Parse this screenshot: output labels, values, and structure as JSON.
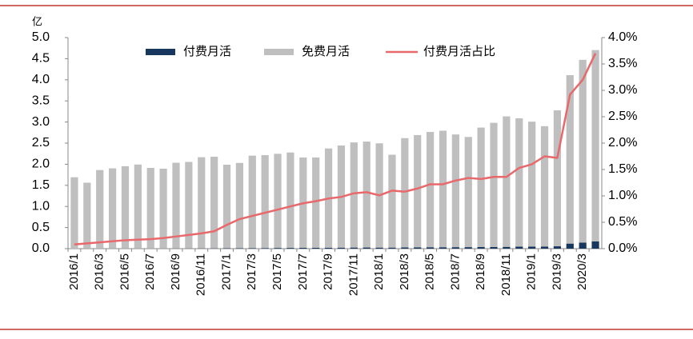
{
  "chart_data": {
    "type": "bar-line",
    "y_unit": "亿",
    "categories": [
      "2016/1",
      null,
      "2016/3",
      null,
      "2016/5",
      null,
      "2016/7",
      null,
      "2016/9",
      null,
      "2016/11",
      null,
      "2017/1",
      null,
      "2017/3",
      null,
      "2017/5",
      null,
      "2017/7",
      null,
      "2017/9",
      null,
      "2017/11",
      null,
      "2018/1",
      null,
      "2018/3",
      null,
      "2018/5",
      null,
      "2018/7",
      null,
      "2018/9",
      null,
      "2018/11",
      null,
      "2019/1",
      null,
      "2019/3",
      null,
      "2020/3",
      null
    ],
    "series": [
      {
        "name": "付费月活",
        "color": "#17375e",
        "values": [
          0.001,
          0.002,
          0.002,
          0.003,
          0.003,
          0.003,
          0.003,
          0.004,
          0.005,
          0.005,
          0.006,
          0.007,
          0.009,
          0.011,
          0.014,
          0.015,
          0.017,
          0.018,
          0.019,
          0.019,
          0.023,
          0.024,
          0.026,
          0.027,
          0.025,
          0.025,
          0.028,
          0.031,
          0.034,
          0.034,
          0.035,
          0.036,
          0.038,
          0.041,
          0.043,
          0.047,
          0.048,
          0.051,
          0.056,
          0.12,
          0.143,
          0.174
        ]
      },
      {
        "name": "免费月活",
        "color": "#bfbfbf",
        "values": [
          1.69,
          1.56,
          1.86,
          1.9,
          1.95,
          1.99,
          1.91,
          1.89,
          2.03,
          2.05,
          2.16,
          2.17,
          1.98,
          2.02,
          2.19,
          2.2,
          2.23,
          2.26,
          2.14,
          2.14,
          2.35,
          2.42,
          2.49,
          2.51,
          2.47,
          2.2,
          2.59,
          2.66,
          2.73,
          2.76,
          2.67,
          2.61,
          2.83,
          2.94,
          3.09,
          3.04,
          2.96,
          2.85,
          3.22,
          3.99,
          4.33,
          4.53
        ]
      },
      {
        "name": "付费月活占比",
        "color": "#e8686b",
        "axis": "y2",
        "values": [
          0.08,
          0.1,
          0.12,
          0.14,
          0.16,
          0.17,
          0.18,
          0.2,
          0.23,
          0.26,
          0.29,
          0.33,
          0.45,
          0.56,
          0.62,
          0.68,
          0.74,
          0.8,
          0.86,
          0.9,
          0.95,
          0.98,
          1.05,
          1.07,
          1.01,
          1.1,
          1.08,
          1.14,
          1.22,
          1.22,
          1.29,
          1.34,
          1.32,
          1.36,
          1.36,
          1.53,
          1.6,
          1.75,
          1.72,
          2.92,
          3.2,
          3.7
        ]
      }
    ],
    "ylim": [
      0,
      5
    ],
    "yticks": [
      {
        "value": 0,
        "label": "0.0"
      },
      {
        "value": 0.5,
        "label": "0.5"
      },
      {
        "value": 1,
        "label": "1.0"
      },
      {
        "value": 1.5,
        "label": "1.5"
      },
      {
        "value": 2,
        "label": "2.0"
      },
      {
        "value": 2.5,
        "label": "2.5"
      },
      {
        "value": 3,
        "label": "3.0"
      },
      {
        "value": 3.5,
        "label": "3.5"
      },
      {
        "value": 4,
        "label": "4.0"
      },
      {
        "value": 4.5,
        "label": "4.5"
      },
      {
        "value": 5,
        "label": "5.0"
      }
    ],
    "y2lim": [
      0,
      4
    ],
    "y2ticks": [
      {
        "value": 0,
        "label": "0.0%"
      },
      {
        "value": 0.5,
        "label": "0.5%"
      },
      {
        "value": 1,
        "label": "1.0%"
      },
      {
        "value": 1.5,
        "label": "1.5%"
      },
      {
        "value": 2,
        "label": "2.0%"
      },
      {
        "value": 2.5,
        "label": "2.5%"
      },
      {
        "value": 3,
        "label": "3.0%"
      },
      {
        "value": 3.5,
        "label": "3.5%"
      },
      {
        "value": 4,
        "label": "4.0%"
      }
    ],
    "grid": false
  }
}
